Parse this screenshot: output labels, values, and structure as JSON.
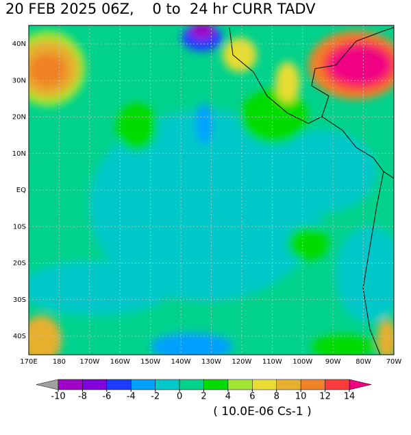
{
  "title": "20 FEB 2025 06Z,    0 to  24 hr CURR TADV",
  "map": {
    "lat_labels": [
      "40N",
      "30N",
      "20N",
      "10N",
      "EQ",
      "10S",
      "20S",
      "30S",
      "40S"
    ],
    "lon_labels": [
      "170E",
      "180",
      "170W",
      "160W",
      "150W",
      "140W",
      "130W",
      "120W",
      "110W",
      "100W",
      "90W",
      "80W",
      "70W"
    ]
  },
  "colorbar": {
    "ticks": [
      -10,
      -8,
      -6,
      -4,
      -2,
      0,
      2,
      4,
      6,
      8,
      10,
      12,
      14
    ],
    "colors": [
      "#a000c8",
      "#8200dc",
      "#1e3cff",
      "#00a0ff",
      "#00c8c8",
      "#00d28c",
      "#00dc00",
      "#a0e632",
      "#e6dc32",
      "#e6af2d",
      "#f08228",
      "#fa3c3c"
    ],
    "under_color": "#a0a0a0",
    "over_color": "#f00082",
    "units": "( 10.0E-06 Cs-1 )"
  }
}
